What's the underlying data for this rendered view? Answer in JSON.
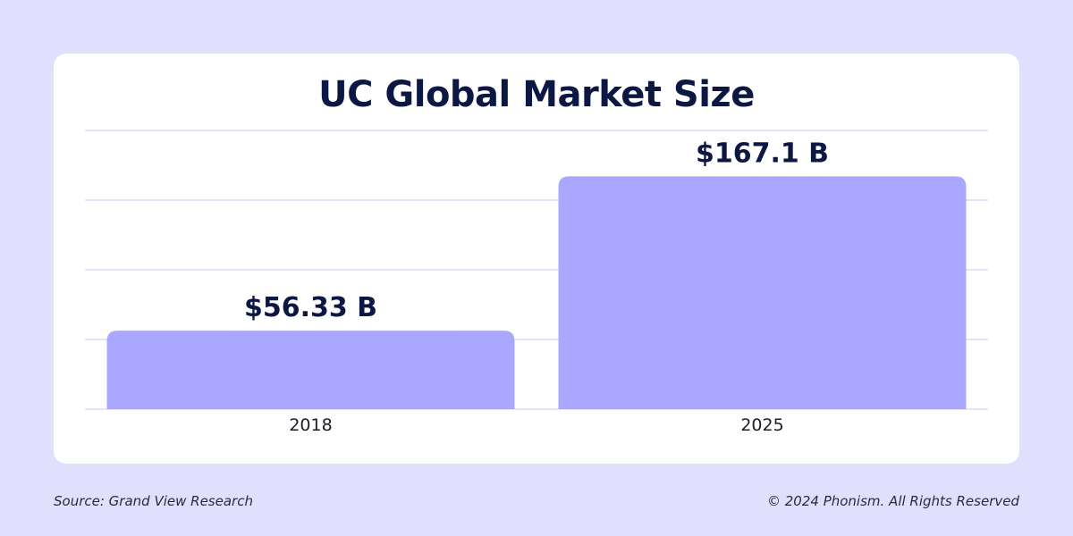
{
  "chart_data": {
    "type": "bar",
    "title": "UC Global Market Size",
    "categories": [
      "2018",
      "2025"
    ],
    "values": [
      56.33,
      167.1
    ],
    "value_labels": [
      "$56.33 B",
      "$167.1 B"
    ],
    "ylim": [
      0,
      200
    ],
    "grid": true,
    "bar_color": "#a9a8fe"
  },
  "footer": {
    "source": "Source: Grand View Research",
    "copyright": "© 2024 Phonism. All Rights Reserved"
  },
  "colors": {
    "background": "#e0e0fe",
    "card": "#ffffff",
    "title": "#0d1744"
  }
}
